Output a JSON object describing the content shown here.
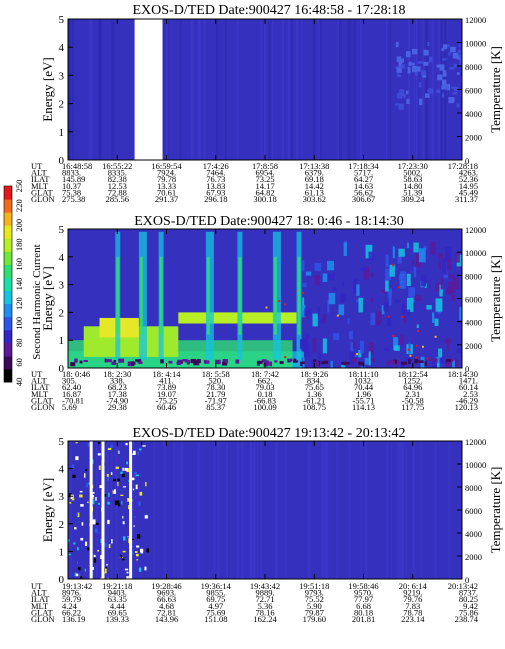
{
  "colorbar": {
    "label": "Second Harmonic Current",
    "ticks": [
      "40",
      "60",
      "80",
      "100",
      "120",
      "140",
      "160",
      "180",
      "200",
      "220",
      "250"
    ],
    "colors": [
      "#000000",
      "#3a0a5a",
      "#5a1a9a",
      "#3326c6",
      "#2f55e8",
      "#1f8ef0",
      "#14c4e0",
      "#18e0a8",
      "#2ee070",
      "#6ee83c",
      "#b8ee24",
      "#e8e81e",
      "#f4b41e",
      "#f26a1c",
      "#e21818"
    ]
  },
  "chart_data": [
    {
      "type": "heatmap",
      "title": "EXOS-D/TED   Date:900427   16:48:58 - 17:28:18",
      "ylabel": "Energy [eV]",
      "ylabel_right": "Temperature [K]",
      "ylim": [
        0,
        5
      ],
      "y_ticks": [
        "0",
        "1",
        "2",
        "3",
        "4",
        "5"
      ],
      "ylim_right": [
        0,
        12000
      ],
      "y_ticks_right": [
        "0",
        "2000",
        "4000",
        "6000",
        "8000",
        "10000",
        "12000"
      ],
      "background_color": "#3530be",
      "x_ticks": [
        "16:48:58",
        "16:55:22",
        "16:59:54",
        "17:4:26",
        "17:8:58",
        "17:13:38",
        "17:18:34",
        "17:23:30",
        "17:28:18"
      ],
      "table": [
        {
          "label": "UT",
          "values": [
            "16:48:58",
            "16:55:22",
            "16:59:54",
            "17:4:26",
            "17:8:58",
            "17:13:38",
            "17:18:34",
            "17:23:30",
            "17:28:18"
          ]
        },
        {
          "label": "ALT",
          "values": [
            "8833.",
            "8335.",
            "7924.",
            "7464.",
            "6954.",
            "6379.",
            "5717.",
            "5002.",
            "4263."
          ]
        },
        {
          "label": "ILAT",
          "values": [
            "145.89",
            "82.38",
            "79.78",
            "76.73",
            "73.25",
            "69.18",
            "64.27",
            "58.63",
            "52.36"
          ]
        },
        {
          "label": "MLT",
          "values": [
            "10.37",
            "12.53",
            "13.33",
            "13.83",
            "14.17",
            "14.42",
            "14.63",
            "14.80",
            "14.95"
          ]
        },
        {
          "label": "GLAT",
          "values": [
            "75.38",
            "72.88",
            "70.61",
            "67.93",
            "64.82",
            "61.13",
            "56.62",
            "51.39",
            "45.49"
          ]
        },
        {
          "label": "GLON",
          "values": [
            "275.38",
            "285.56",
            "291.37",
            "296.18",
            "300.18",
            "303.62",
            "306.67",
            "309.24",
            "311.37"
          ]
        }
      ],
      "data_gap": [
        16.9,
        24.0
      ]
    },
    {
      "type": "heatmap",
      "title": "EXOS-D/TED   Date:900427   18: 0:46 - 18:14:30",
      "ylabel": "Energy [eV]",
      "ylabel_right": "Temperature [K]",
      "ylim": [
        0,
        5
      ],
      "y_ticks": [
        "0",
        "1",
        "2",
        "3",
        "4",
        "5"
      ],
      "ylim_right": [
        0,
        12000
      ],
      "y_ticks_right": [
        "0",
        "2000",
        "4000",
        "6000",
        "8000",
        "10000",
        "12000"
      ],
      "background_color": "#3530be",
      "x_ticks": [
        "18: 0:46",
        "18: 2:30",
        "18: 4:14",
        "18: 5:58",
        "18: 7:42",
        "18: 9:26",
        "18:11:10",
        "18:12:54",
        "18:14:30"
      ],
      "table": [
        {
          "label": "UT",
          "values": [
            "18: 0:46",
            "18: 2:30",
            "18: 4:14",
            "18: 5:58",
            "18: 7:42",
            "18: 9:26",
            "18:11:10",
            "18:12:54",
            "18:14:30"
          ]
        },
        {
          "label": "ALT",
          "values": [
            "305.",
            "338.",
            "411.",
            "520.",
            "662.",
            "834.",
            "1032.",
            "1252.",
            "1471."
          ]
        },
        {
          "label": "ILAT",
          "values": [
            "62.40",
            "68.23",
            "73.89",
            "78.30",
            "79.03",
            "75.65",
            "70.44",
            "64.96",
            "60.14"
          ]
        },
        {
          "label": "MLT",
          "values": [
            "16.87",
            "17.38",
            "19.07",
            "21.79",
            "0.18",
            "1.36",
            "1.96",
            "2.31",
            "2.53"
          ]
        },
        {
          "label": "GLAT",
          "values": [
            "-70.81",
            "-74.90",
            "-75.25",
            "-71.97",
            "-66.83",
            "-61.21",
            "-55.71",
            "-50.58",
            "-46.29"
          ]
        },
        {
          "label": "GLON",
          "values": [
            "5.69",
            "29.38",
            "60.46",
            "85.37",
            "100.09",
            "108.75",
            "114.13",
            "117.75",
            "120.13"
          ]
        }
      ]
    },
    {
      "type": "heatmap",
      "title": "EXOS-D/TED   Date:900427   19:13:42 - 20:13:42",
      "ylabel": "Energy [eV]",
      "ylabel_right": "Temperature [K]",
      "ylim": [
        0,
        5
      ],
      "y_ticks": [
        "0",
        "1",
        "2",
        "3",
        "4",
        "5"
      ],
      "ylim_right": [
        0,
        12000
      ],
      "y_ticks_right": [
        "0",
        "2000",
        "4000",
        "6000",
        "8000",
        "10000",
        "12000"
      ],
      "background_color": "#3530be",
      "x_ticks": [
        "19:13:42",
        "19:21:18",
        "19:28:46",
        "19:36:14",
        "19:43:42",
        "19:51:18",
        "19:58:46",
        "20: 6:14",
        "20:13:42"
      ],
      "table": [
        {
          "label": "UT",
          "values": [
            "19:13:42",
            "19:21:18",
            "19:28:46",
            "19:36:14",
            "19:43:42",
            "19:51:18",
            "19:58:46",
            "20: 6:14",
            "20:13:42"
          ]
        },
        {
          "label": "ALT",
          "values": [
            "8976.",
            "9403.",
            "9693.",
            "9855.",
            "9889.",
            "9793.",
            "9570.",
            "9219.",
            "8737."
          ]
        },
        {
          "label": "ILAT",
          "values": [
            "59.79",
            "63.35",
            "66.63",
            "69.75",
            "72.71",
            "75.52",
            "77.97",
            "79.76",
            "80.25"
          ]
        },
        {
          "label": "MLT",
          "values": [
            "4.24",
            "4.44",
            "4.68",
            "4.97",
            "5.36",
            "5.90",
            "6.68",
            "7.83",
            "9.42"
          ]
        },
        {
          "label": "GLAT",
          "values": [
            "66.22",
            "69.65",
            "72.81",
            "75.69",
            "78.16",
            "79.87",
            "80.18",
            "78.78",
            "75.86"
          ]
        },
        {
          "label": "GLON",
          "values": [
            "136.19",
            "139.33",
            "143.96",
            "151.08",
            "162.24",
            "179.60",
            "201.81",
            "223.14",
            "238.74"
          ]
        }
      ]
    }
  ]
}
